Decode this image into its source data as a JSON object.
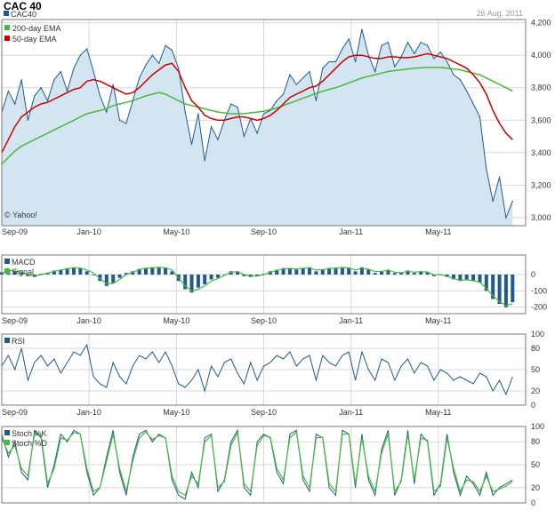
{
  "header": {
    "title": "CAC 40",
    "ticker": "CAC40",
    "date": "26 Aug, 2011",
    "watermark": "© Yahoo!"
  },
  "colors": {
    "price": "#1f5a8b",
    "price_fill": "#d4e5f2",
    "ema200": "#49b83d",
    "ema50": "#cc0000",
    "macd_bar": "#1f5a8b",
    "signal": "#49b83d",
    "rsi": "#1f5a8b",
    "stoch_k": "#1f5a8b",
    "stoch_d": "#49b83d",
    "grid": "#d8d8d8",
    "frame": "#7a7a7a"
  },
  "x_axis": {
    "labels": [
      "Sep-09",
      "Jan-10",
      "May-10",
      "Sep-10",
      "Jan-11",
      "May-11"
    ],
    "positions": [
      0,
      4,
      8,
      12,
      16,
      20
    ],
    "range": [
      0,
      24
    ]
  },
  "chart_data": [
    {
      "type": "line",
      "name": "price",
      "title": "CAC 40",
      "legend": [
        "CAC40",
        "200-day EMA",
        "50-day EMA"
      ],
      "ylim": [
        2950,
        4220
      ],
      "yticks": [
        3000,
        3200,
        3400,
        3600,
        3800,
        4000,
        4200
      ],
      "ytick_labels": [
        "3,000",
        "3,200",
        "3,400",
        "3,600",
        "3,800",
        "4,000",
        "4,200"
      ],
      "x": [
        0,
        0.3,
        0.6,
        0.9,
        1.2,
        1.5,
        1.8,
        2.1,
        2.4,
        2.7,
        3.0,
        3.3,
        3.6,
        3.9,
        4.2,
        4.5,
        4.8,
        5.1,
        5.4,
        5.7,
        6.0,
        6.3,
        6.6,
        6.9,
        7.2,
        7.5,
        7.8,
        8.1,
        8.4,
        8.7,
        9.0,
        9.3,
        9.6,
        9.9,
        10.2,
        10.5,
        10.8,
        11.1,
        11.4,
        11.7,
        12.0,
        12.3,
        12.6,
        12.9,
        13.2,
        13.5,
        13.8,
        14.1,
        14.4,
        14.7,
        15.0,
        15.3,
        15.6,
        15.9,
        16.2,
        16.5,
        16.8,
        17.1,
        17.4,
        17.7,
        18.0,
        18.3,
        18.6,
        18.9,
        19.2,
        19.5,
        19.8,
        20.1,
        20.4,
        20.7,
        21.0,
        21.3,
        21.6,
        21.9,
        22.2,
        22.5,
        22.8,
        23.1,
        23.4
      ],
      "series": [
        {
          "name": "CAC40",
          "values": [
            3650,
            3780,
            3700,
            3850,
            3600,
            3750,
            3800,
            3720,
            3850,
            3900,
            3780,
            3920,
            4000,
            4040,
            3900,
            3750,
            3650,
            3820,
            3600,
            3580,
            3720,
            3860,
            3940,
            4000,
            3950,
            4060,
            4030,
            3920,
            3650,
            3450,
            3640,
            3350,
            3560,
            3480,
            3600,
            3700,
            3680,
            3500,
            3610,
            3520,
            3640,
            3660,
            3720,
            3760,
            3880,
            3820,
            3860,
            3900,
            3720,
            3920,
            3960,
            3960,
            4040,
            4100,
            3960,
            4160,
            4000,
            3900,
            4060,
            4080,
            3930,
            3990,
            4080,
            4010,
            4080,
            4060,
            3980,
            4020,
            3960,
            3880,
            3850,
            3780,
            3700,
            3620,
            3300,
            3100,
            3250,
            3000,
            3100
          ]
        },
        {
          "name": "200-day EMA",
          "values": [
            3330,
            3370,
            3410,
            3440,
            3460,
            3480,
            3500,
            3520,
            3540,
            3560,
            3580,
            3600,
            3620,
            3640,
            3650,
            3660,
            3670,
            3690,
            3700,
            3710,
            3720,
            3735,
            3750,
            3760,
            3770,
            3760,
            3740,
            3720,
            3700,
            3690,
            3680,
            3670,
            3660,
            3650,
            3645,
            3640,
            3640,
            3640,
            3645,
            3650,
            3655,
            3665,
            3675,
            3690,
            3705,
            3720,
            3735,
            3750,
            3765,
            3778,
            3790,
            3800,
            3815,
            3830,
            3845,
            3860,
            3870,
            3880,
            3890,
            3900,
            3905,
            3910,
            3915,
            3920,
            3922,
            3925,
            3925,
            3925,
            3920,
            3915,
            3910,
            3900,
            3890,
            3880,
            3860,
            3840,
            3820,
            3800,
            3780
          ]
        },
        {
          "name": "50-day EMA",
          "values": [
            3400,
            3480,
            3560,
            3620,
            3650,
            3680,
            3700,
            3710,
            3730,
            3750,
            3770,
            3790,
            3800,
            3840,
            3850,
            3840,
            3820,
            3800,
            3780,
            3760,
            3770,
            3800,
            3840,
            3880,
            3910,
            3940,
            3950,
            3900,
            3800,
            3720,
            3680,
            3630,
            3610,
            3600,
            3600,
            3610,
            3620,
            3620,
            3610,
            3600,
            3610,
            3630,
            3660,
            3700,
            3740,
            3760,
            3780,
            3800,
            3810,
            3840,
            3880,
            3920,
            3960,
            3990,
            4000,
            4000,
            3990,
            3980,
            3980,
            3990,
            3990,
            3985,
            3985,
            3990,
            4000,
            4010,
            4000,
            3990,
            3980,
            3960,
            3940,
            3920,
            3880,
            3830,
            3760,
            3660,
            3580,
            3520,
            3480
          ]
        }
      ]
    },
    {
      "type": "bar",
      "name": "macd",
      "legend": [
        "MACD",
        "Signal"
      ],
      "ylim": [
        -240,
        120
      ],
      "yticks": [
        0,
        -100,
        -200
      ],
      "ytick_labels": [
        "0",
        "-100",
        "-200"
      ],
      "x": [
        0,
        0.3,
        0.6,
        0.9,
        1.2,
        1.5,
        1.8,
        2.1,
        2.4,
        2.7,
        3.0,
        3.3,
        3.6,
        3.9,
        4.2,
        4.5,
        4.8,
        5.1,
        5.4,
        5.7,
        6.0,
        6.3,
        6.6,
        6.9,
        7.2,
        7.5,
        7.8,
        8.1,
        8.4,
        8.7,
        9.0,
        9.3,
        9.6,
        9.9,
        10.2,
        10.5,
        10.8,
        11.1,
        11.4,
        11.7,
        12.0,
        12.3,
        12.6,
        12.9,
        13.2,
        13.5,
        13.8,
        14.1,
        14.4,
        14.7,
        15.0,
        15.3,
        15.6,
        15.9,
        16.2,
        16.5,
        16.8,
        17.1,
        17.4,
        17.7,
        18.0,
        18.3,
        18.6,
        18.9,
        19.2,
        19.5,
        19.8,
        20.1,
        20.4,
        20.7,
        21.0,
        21.3,
        21.6,
        21.9,
        22.2,
        22.5,
        22.8,
        23.1,
        23.4
      ],
      "series": [
        {
          "name": "MACD",
          "values": [
            15,
            30,
            20,
            10,
            -10,
            -15,
            5,
            10,
            25,
            30,
            40,
            45,
            40,
            20,
            0,
            -40,
            -70,
            -50,
            -20,
            10,
            20,
            35,
            40,
            45,
            45,
            40,
            20,
            -40,
            -90,
            -110,
            -80,
            -60,
            -30,
            -20,
            0,
            20,
            20,
            -10,
            -15,
            -10,
            5,
            20,
            30,
            40,
            40,
            30,
            40,
            45,
            20,
            30,
            40,
            40,
            45,
            40,
            20,
            45,
            30,
            10,
            20,
            30,
            10,
            10,
            25,
            10,
            20,
            15,
            -10,
            0,
            -15,
            -30,
            -40,
            -30,
            -40,
            -50,
            -100,
            -150,
            -180,
            -200,
            -170
          ]
        },
        {
          "name": "Signal",
          "values": [
            10,
            25,
            22,
            15,
            0,
            -10,
            0,
            8,
            20,
            28,
            35,
            42,
            40,
            28,
            10,
            -25,
            -55,
            -55,
            -30,
            0,
            15,
            30,
            38,
            42,
            44,
            42,
            28,
            -20,
            -70,
            -100,
            -90,
            -70,
            -40,
            -25,
            -5,
            15,
            18,
            0,
            -10,
            -10,
            0,
            15,
            25,
            35,
            38,
            33,
            38,
            42,
            28,
            30,
            37,
            40,
            43,
            41,
            28,
            40,
            33,
            18,
            20,
            27,
            15,
            12,
            20,
            14,
            18,
            16,
            -2,
            0,
            -10,
            -25,
            -35,
            -32,
            -38,
            -45,
            -85,
            -130,
            -165,
            -190,
            -180
          ]
        }
      ]
    },
    {
      "type": "line",
      "name": "rsi",
      "legend": [
        "RSI"
      ],
      "ylim": [
        0,
        100
      ],
      "yticks": [
        100,
        80,
        50,
        20,
        0
      ],
      "ytick_labels": [
        "100",
        "80",
        "50",
        "20",
        "0"
      ],
      "x": [
        0,
        0.3,
        0.6,
        0.9,
        1.2,
        1.5,
        1.8,
        2.1,
        2.4,
        2.7,
        3.0,
        3.3,
        3.6,
        3.9,
        4.2,
        4.5,
        4.8,
        5.1,
        5.4,
        5.7,
        6.0,
        6.3,
        6.6,
        6.9,
        7.2,
        7.5,
        7.8,
        8.1,
        8.4,
        8.7,
        9.0,
        9.3,
        9.6,
        9.9,
        10.2,
        10.5,
        10.8,
        11.1,
        11.4,
        11.7,
        12.0,
        12.3,
        12.6,
        12.9,
        13.2,
        13.5,
        13.8,
        14.1,
        14.4,
        14.7,
        15.0,
        15.3,
        15.6,
        15.9,
        16.2,
        16.5,
        16.8,
        17.1,
        17.4,
        17.7,
        18.0,
        18.3,
        18.6,
        18.9,
        19.2,
        19.5,
        19.8,
        20.1,
        20.4,
        20.7,
        21.0,
        21.3,
        21.6,
        21.9,
        22.2,
        22.5,
        22.8,
        23.1,
        23.4
      ],
      "series": [
        {
          "name": "RSI",
          "values": [
            55,
            70,
            50,
            80,
            35,
            60,
            70,
            55,
            65,
            45,
            60,
            75,
            70,
            85,
            40,
            30,
            25,
            60,
            40,
            30,
            55,
            70,
            65,
            75,
            60,
            75,
            55,
            30,
            25,
            35,
            50,
            20,
            55,
            40,
            60,
            65,
            45,
            30,
            60,
            35,
            55,
            60,
            70,
            65,
            75,
            55,
            65,
            70,
            35,
            70,
            60,
            55,
            70,
            75,
            35,
            75,
            50,
            35,
            65,
            60,
            35,
            55,
            65,
            45,
            60,
            55,
            35,
            50,
            45,
            35,
            40,
            35,
            30,
            45,
            40,
            20,
            35,
            15,
            40
          ]
        }
      ]
    },
    {
      "type": "line",
      "name": "stochastic",
      "legend": [
        "Stoch %K",
        "Stoch %D"
      ],
      "ylim": [
        0,
        100
      ],
      "yticks": [
        100,
        80,
        50,
        20,
        0
      ],
      "ytick_labels": [
        "100",
        "80",
        "50",
        "20",
        "0"
      ],
      "x": [
        0,
        0.3,
        0.6,
        0.9,
        1.2,
        1.5,
        1.8,
        2.1,
        2.4,
        2.7,
        3.0,
        3.3,
        3.6,
        3.9,
        4.2,
        4.5,
        4.8,
        5.1,
        5.4,
        5.7,
        6.0,
        6.3,
        6.6,
        6.9,
        7.2,
        7.5,
        7.8,
        8.1,
        8.4,
        8.7,
        9.0,
        9.3,
        9.6,
        9.9,
        10.2,
        10.5,
        10.8,
        11.1,
        11.4,
        11.7,
        12.0,
        12.3,
        12.6,
        12.9,
        13.2,
        13.5,
        13.8,
        14.1,
        14.4,
        14.7,
        15.0,
        15.3,
        15.6,
        15.9,
        16.2,
        16.5,
        16.8,
        17.1,
        17.4,
        17.7,
        18.0,
        18.3,
        18.6,
        18.9,
        19.2,
        19.5,
        19.8,
        20.1,
        20.4,
        20.7,
        21.0,
        21.3,
        21.6,
        21.9,
        22.2,
        22.5,
        22.8,
        23.1,
        23.4
      ],
      "series": [
        {
          "name": "Stoch %K",
          "values": [
            90,
            60,
            80,
            40,
            30,
            95,
            85,
            20,
            50,
            90,
            80,
            95,
            90,
            40,
            10,
            20,
            60,
            95,
            40,
            10,
            60,
            90,
            95,
            80,
            90,
            85,
            30,
            10,
            5,
            40,
            20,
            85,
            90,
            15,
            30,
            80,
            95,
            20,
            10,
            80,
            90,
            85,
            40,
            25,
            90,
            95,
            30,
            15,
            90,
            85,
            20,
            10,
            95,
            90,
            20,
            90,
            30,
            10,
            70,
            95,
            10,
            30,
            95,
            25,
            90,
            80,
            10,
            25,
            90,
            40,
            10,
            35,
            25,
            10,
            40,
            10,
            20,
            25,
            30
          ]
        },
        {
          "name": "Stoch %D",
          "values": [
            85,
            65,
            75,
            45,
            35,
            90,
            88,
            25,
            45,
            85,
            82,
            92,
            90,
            45,
            15,
            20,
            55,
            90,
            45,
            15,
            55,
            85,
            93,
            83,
            88,
            85,
            35,
            15,
            10,
            35,
            25,
            80,
            88,
            20,
            28,
            75,
            92,
            25,
            15,
            75,
            88,
            86,
            45,
            30,
            85,
            93,
            35,
            20,
            85,
            86,
            25,
            15,
            90,
            90,
            25,
            85,
            35,
            15,
            65,
            90,
            15,
            28,
            90,
            30,
            85,
            82,
            15,
            22,
            85,
            45,
            15,
            30,
            28,
            15,
            35,
            15,
            18,
            22,
            28
          ]
        }
      ]
    }
  ]
}
